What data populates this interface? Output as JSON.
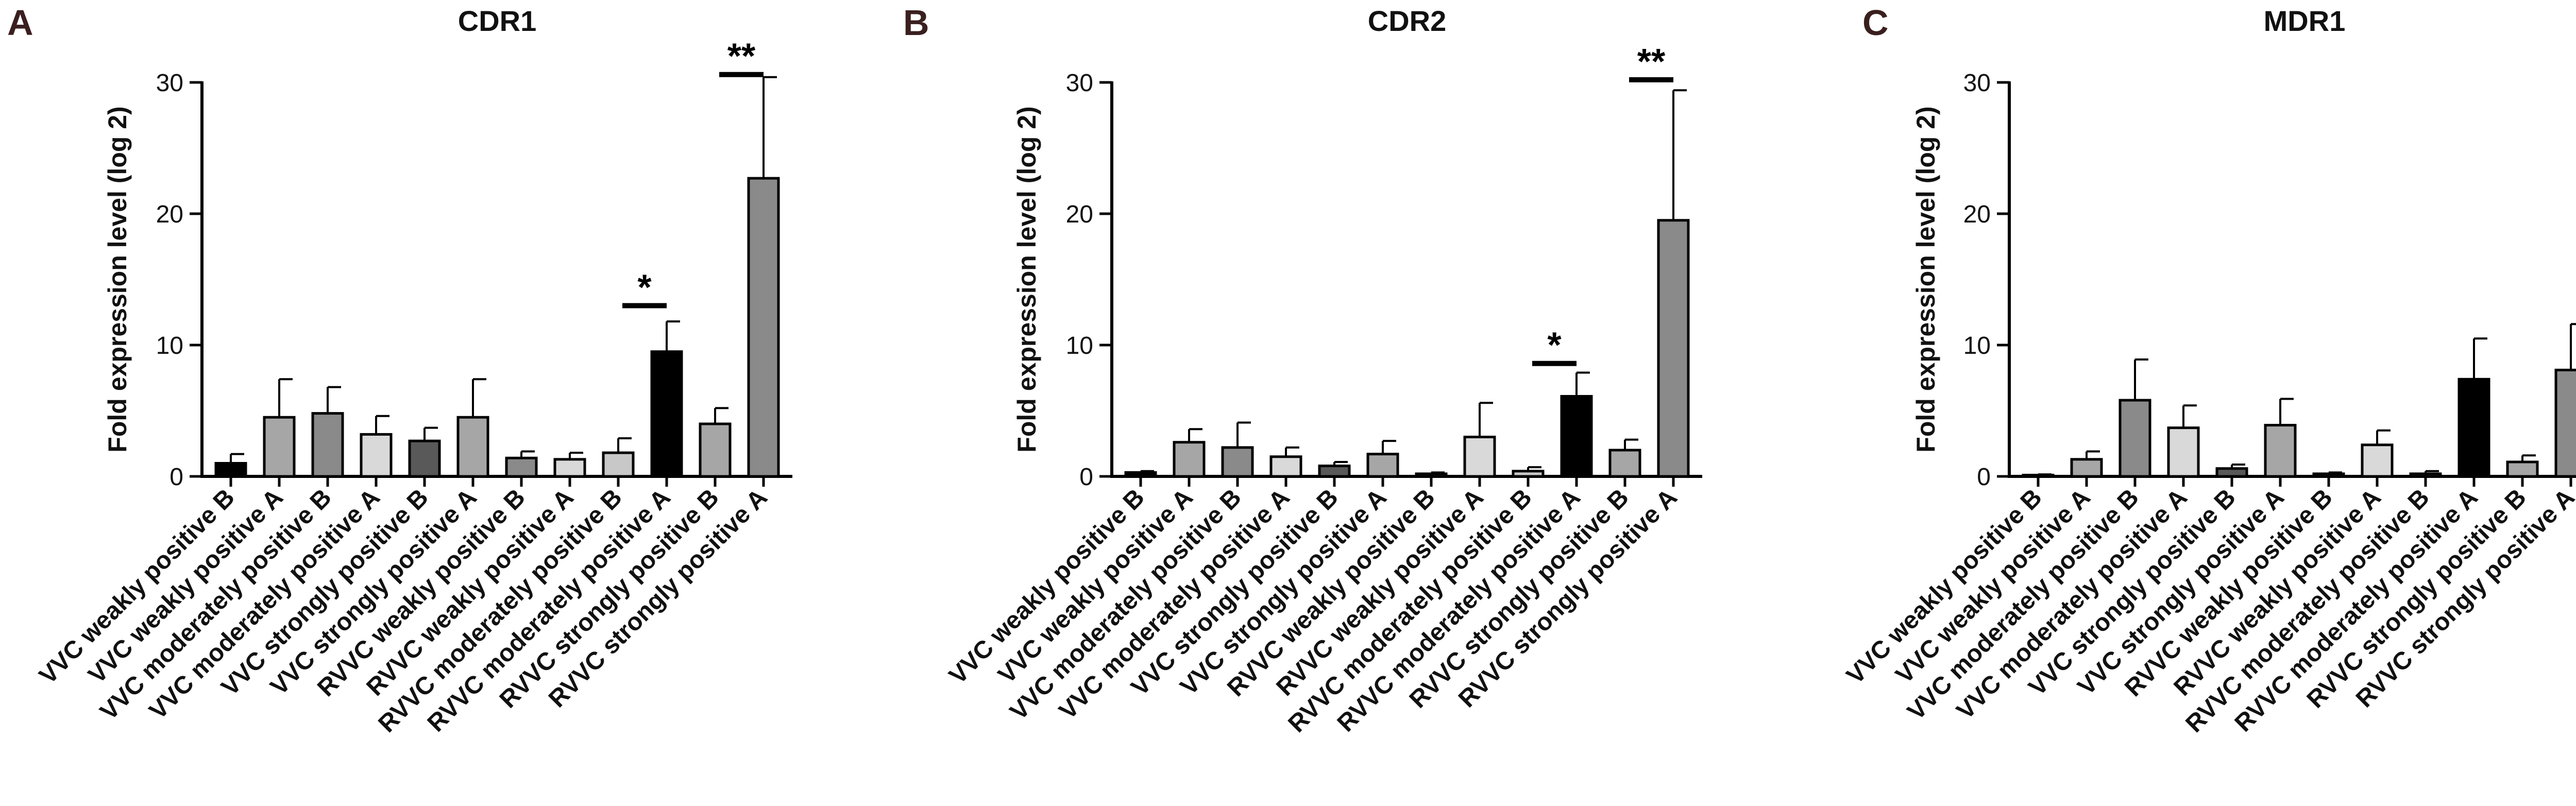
{
  "chart_data": [
    {
      "type": "bar",
      "panel_label": "A",
      "title": "CDR1",
      "ylabel": "Fold expression level (log 2)",
      "ylim": [
        0,
        30
      ],
      "yticks": [
        "0",
        "10",
        "20",
        "30"
      ],
      "categories": [
        "VVC weakly positive B",
        "VVC weakly positive A",
        "VVC moderately positive B",
        "VVC moderately positive A",
        "VVC strongly positive B",
        "VVC strongly positive A",
        "RVVC weakly positive B",
        "RVVC weakly positive A",
        "RVVC moderately positive B",
        "RVVC moderately positive A",
        "RVVC strongly positive B",
        "RVVC strongly positive A"
      ],
      "values": [
        1.0,
        4.5,
        4.8,
        3.2,
        2.7,
        4.5,
        1.4,
        1.3,
        1.8,
        9.5,
        4.0,
        22.7
      ],
      "errors": [
        0.7,
        2.9,
        2.0,
        1.4,
        1.0,
        2.9,
        0.5,
        0.5,
        1.1,
        2.3,
        1.2,
        7.7
      ],
      "fills": [
        "#000000",
        "#a6a6a6",
        "#8a8a8a",
        "#d9d9d9",
        "#595959",
        "#a6a6a6",
        "#8a8a8a",
        "#d9d9d9",
        "#c8c8c8",
        "#000000",
        "#a6a6a6",
        "#8a8a8a"
      ],
      "significance": [
        {
          "label": "*",
          "bar": 9,
          "y": 13.0
        },
        {
          "label": "**",
          "bar": 11,
          "y": 30.6
        }
      ]
    },
    {
      "type": "bar",
      "panel_label": "B",
      "title": "CDR2",
      "ylabel": "Fold expression level (log 2)",
      "ylim": [
        0,
        30
      ],
      "yticks": [
        "0",
        "10",
        "20",
        "30"
      ],
      "categories": [
        "VVC weakly positive B",
        "VVC weakly positive A",
        "VVC moderately positive B",
        "VVC moderately positive A",
        "VVC strongly positive B",
        "VVC strongly positive A",
        "RVVC weakly positive B",
        "RVVC weakly positive A",
        "RVVC moderately positive B",
        "RVVC moderately positive A",
        "RVVC strongly positive B",
        "RVVC strongly positive A"
      ],
      "values": [
        0.3,
        2.6,
        2.2,
        1.5,
        0.8,
        1.7,
        0.2,
        3.0,
        0.4,
        6.1,
        2.0,
        19.5
      ],
      "errors": [
        0.1,
        1.0,
        1.9,
        0.7,
        0.3,
        1.0,
        0.1,
        2.6,
        0.3,
        1.8,
        0.8,
        9.9
      ],
      "fills": [
        "#000000",
        "#a6a6a6",
        "#8a8a8a",
        "#d9d9d9",
        "#595959",
        "#a6a6a6",
        "#8a8a8a",
        "#d9d9d9",
        "#c8c8c8",
        "#000000",
        "#a6a6a6",
        "#8a8a8a"
      ],
      "significance": [
        {
          "label": "*",
          "bar": 9,
          "y": 8.6
        },
        {
          "label": "**",
          "bar": 11,
          "y": 30.2
        }
      ]
    },
    {
      "type": "bar",
      "panel_label": "C",
      "title": "MDR1",
      "ylabel": "Fold expression level (log 2)",
      "ylim": [
        0,
        30
      ],
      "yticks": [
        "0",
        "10",
        "20",
        "30"
      ],
      "categories": [
        "VVC weakly positive B",
        "VVC weakly positive A",
        "VVC moderately positive B",
        "VVC moderately positive A",
        "VVC strongly positive B",
        "VVC strongly positive A",
        "RVVC weakly positive B",
        "RVVC weakly positive A",
        "RVVC moderately positive B",
        "RVVC moderately positive A",
        "RVVC strongly positive B",
        "RVVC strongly positive A"
      ],
      "values": [
        0.1,
        1.3,
        5.8,
        3.7,
        0.6,
        3.9,
        0.2,
        2.4,
        0.2,
        7.4,
        1.1,
        8.1
      ],
      "errors": [
        0.05,
        0.6,
        3.1,
        1.7,
        0.3,
        2.0,
        0.1,
        1.1,
        0.2,
        3.1,
        0.5,
        3.5
      ],
      "fills": [
        "#000000",
        "#a6a6a6",
        "#8a8a8a",
        "#d9d9d9",
        "#595959",
        "#a6a6a6",
        "#8a8a8a",
        "#d9d9d9",
        "#c8c8c8",
        "#000000",
        "#a6a6a6",
        "#8a8a8a"
      ],
      "significance": []
    }
  ]
}
